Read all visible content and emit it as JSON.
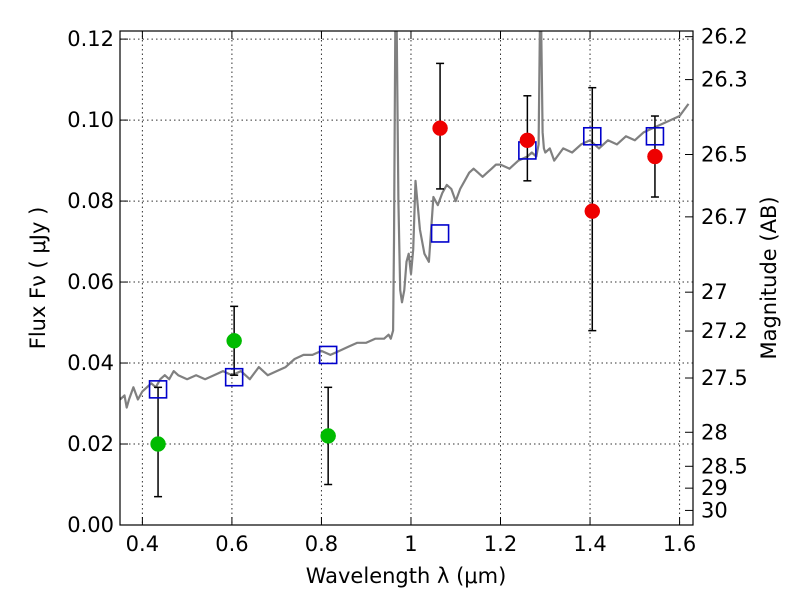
{
  "chart_data": {
    "type": "scatter",
    "title": "",
    "xlabel": "Wavelength  λ (μm)",
    "ylabel": "Flux  Fν  ( μJy )",
    "y2label": "Magnitude (AB)",
    "xlim": [
      0.35,
      1.63
    ],
    "ylim": [
      0.0,
      0.122
    ],
    "grid": true,
    "x_ticks": [
      0.4,
      0.6,
      0.8,
      1.0,
      1.2,
      1.4,
      1.6
    ],
    "x_tick_labels": [
      "0.4",
      "0.6",
      "0.8",
      "1",
      "1.2",
      "1.4",
      "1.6"
    ],
    "y_ticks": [
      0.0,
      0.02,
      0.04,
      0.06,
      0.08,
      0.1,
      0.12
    ],
    "y_tick_labels": [
      "0.00",
      "0.02",
      "0.04",
      "0.06",
      "0.08",
      "0.10",
      "0.12"
    ],
    "mag_ticks": [
      {
        "label": "26.2",
        "flux": 0.1206
      },
      {
        "label": "26.3",
        "flux": 0.11
      },
      {
        "label": "26.5",
        "flux": 0.0915
      },
      {
        "label": "26.7",
        "flux": 0.0761
      },
      {
        "label": "27",
        "flux": 0.0575
      },
      {
        "label": "27.2",
        "flux": 0.0479
      },
      {
        "label": "27.5",
        "flux": 0.0363
      },
      {
        "label": "28",
        "flux": 0.0229
      },
      {
        "label": "28.5",
        "flux": 0.0145
      },
      {
        "label": "29",
        "flux": 0.0091
      },
      {
        "label": "30",
        "flux": 0.0036
      }
    ],
    "series": [
      {
        "kind": "line",
        "color": "#808080",
        "x": [
          0.35,
          0.36,
          0.365,
          0.37,
          0.38,
          0.39,
          0.4,
          0.41,
          0.42,
          0.43,
          0.44,
          0.45,
          0.46,
          0.47,
          0.48,
          0.5,
          0.52,
          0.54,
          0.56,
          0.58,
          0.6,
          0.62,
          0.64,
          0.66,
          0.68,
          0.7,
          0.72,
          0.74,
          0.76,
          0.78,
          0.8,
          0.82,
          0.84,
          0.86,
          0.88,
          0.9,
          0.92,
          0.94,
          0.95,
          0.955,
          0.96,
          0.962,
          0.965,
          0.968,
          0.972,
          0.976,
          0.98,
          0.985,
          0.99,
          0.995,
          1.0,
          1.005,
          1.01,
          1.02,
          1.03,
          1.04,
          1.05,
          1.06,
          1.07,
          1.08,
          1.09,
          1.1,
          1.11,
          1.12,
          1.13,
          1.14,
          1.15,
          1.16,
          1.17,
          1.18,
          1.19,
          1.2,
          1.22,
          1.24,
          1.26,
          1.27,
          1.28,
          1.285,
          1.288,
          1.291,
          1.294,
          1.297,
          1.3,
          1.31,
          1.32,
          1.34,
          1.36,
          1.38,
          1.4,
          1.42,
          1.44,
          1.46,
          1.48,
          1.5,
          1.52,
          1.54,
          1.56,
          1.58,
          1.6,
          1.62
        ],
        "y": [
          0.031,
          0.032,
          0.029,
          0.031,
          0.034,
          0.031,
          0.033,
          0.034,
          0.035,
          0.034,
          0.036,
          0.037,
          0.036,
          0.038,
          0.037,
          0.036,
          0.037,
          0.036,
          0.037,
          0.038,
          0.037,
          0.038,
          0.036,
          0.039,
          0.037,
          0.038,
          0.039,
          0.041,
          0.042,
          0.042,
          0.043,
          0.042,
          0.043,
          0.044,
          0.045,
          0.045,
          0.046,
          0.046,
          0.047,
          0.046,
          0.048,
          0.07,
          0.123,
          0.123,
          0.08,
          0.058,
          0.055,
          0.058,
          0.065,
          0.067,
          0.062,
          0.068,
          0.085,
          0.073,
          0.067,
          0.065,
          0.081,
          0.079,
          0.082,
          0.084,
          0.083,
          0.08,
          0.083,
          0.085,
          0.087,
          0.088,
          0.087,
          0.086,
          0.087,
          0.088,
          0.089,
          0.089,
          0.088,
          0.09,
          0.091,
          0.092,
          0.091,
          0.094,
          0.123,
          0.123,
          0.097,
          0.093,
          0.092,
          0.093,
          0.09,
          0.093,
          0.092,
          0.094,
          0.095,
          0.093,
          0.095,
          0.094,
          0.096,
          0.095,
          0.097,
          0.098,
          0.099,
          0.1,
          0.101,
          0.104
        ]
      },
      {
        "kind": "markers",
        "name": "",
        "marker": "square",
        "color": "#0000cc",
        "x": [
          0.435,
          0.605,
          0.815,
          1.065,
          1.26,
          1.405,
          1.545
        ],
        "y": [
          0.0335,
          0.0365,
          0.042,
          0.072,
          0.0925,
          0.096,
          0.096
        ]
      },
      {
        "kind": "markers",
        "name": "",
        "marker": "circle",
        "color": "#00bb00",
        "x": [
          0.435,
          0.605,
          0.815
        ],
        "y": [
          0.02,
          0.0455,
          0.022
        ],
        "err_low": [
          0.007,
          0.037,
          0.01
        ],
        "err_high": [
          0.034,
          0.054,
          0.034
        ]
      },
      {
        "kind": "markers",
        "name": "",
        "marker": "circle",
        "color": "#ee0000",
        "x": [
          1.065,
          1.26,
          1.405,
          1.545
        ],
        "y": [
          0.098,
          0.095,
          0.0775,
          0.091
        ],
        "err_low": [
          0.083,
          0.085,
          0.048,
          0.081
        ],
        "err_high": [
          0.114,
          0.106,
          0.108,
          0.101
        ]
      }
    ]
  }
}
